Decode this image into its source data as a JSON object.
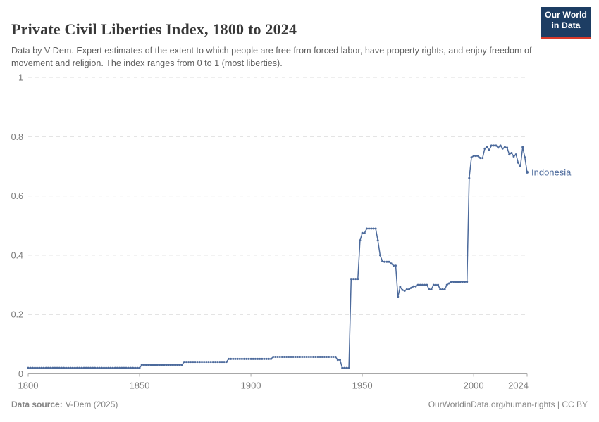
{
  "header": {
    "title": "Private Civil Liberties Index, 1800 to 2024",
    "subtitle": "Data by V-Dem. Expert estimates of the extent to which people are free from forced labor, have property rights, and enjoy freedom of movement and religion. The index ranges from 0 to 1 (most liberties).",
    "logo": {
      "line1": "Our World",
      "line2": "in Data",
      "bg_color": "#1d3d63",
      "accent_color": "#d93b2b"
    }
  },
  "footer": {
    "source_label": "Data source:",
    "source_value": "V-Dem (2025)",
    "credit": "OurWorldinData.org/human-rights | CC BY"
  },
  "chart_data": {
    "type": "line",
    "title": "Private Civil Liberties Index, 1800 to 2024",
    "xlabel": "",
    "ylabel": "",
    "xlim": [
      1800,
      2024
    ],
    "ylim": [
      0,
      1
    ],
    "grid": "dashed-horizontal",
    "x_ticks": {
      "values": [
        1800,
        1850,
        1900,
        1950,
        2000,
        2024
      ],
      "labels": [
        "1800",
        "1850",
        "1900",
        "1950",
        "2000",
        "2024"
      ]
    },
    "y_ticks": {
      "values": [
        0,
        0.2,
        0.4,
        0.6,
        0.8,
        1
      ],
      "labels": [
        "0",
        "0.2",
        "0.4",
        "0.6",
        "0.8",
        "1"
      ]
    },
    "line_color": "#4c6a9c",
    "series": [
      {
        "name": "Indonesia",
        "start_year": 1800,
        "values": [
          0.02,
          0.02,
          0.02,
          0.02,
          0.02,
          0.02,
          0.02,
          0.02,
          0.02,
          0.02,
          0.02,
          0.02,
          0.02,
          0.02,
          0.02,
          0.02,
          0.02,
          0.02,
          0.02,
          0.02,
          0.02,
          0.02,
          0.02,
          0.02,
          0.02,
          0.02,
          0.02,
          0.02,
          0.02,
          0.02,
          0.02,
          0.02,
          0.02,
          0.02,
          0.02,
          0.02,
          0.02,
          0.02,
          0.02,
          0.02,
          0.02,
          0.02,
          0.02,
          0.02,
          0.02,
          0.02,
          0.02,
          0.02,
          0.02,
          0.02,
          0.02,
          0.03,
          0.03,
          0.03,
          0.03,
          0.03,
          0.03,
          0.03,
          0.03,
          0.03,
          0.03,
          0.03,
          0.03,
          0.03,
          0.03,
          0.03,
          0.03,
          0.03,
          0.03,
          0.03,
          0.04,
          0.04,
          0.04,
          0.04,
          0.04,
          0.04,
          0.04,
          0.04,
          0.04,
          0.04,
          0.04,
          0.04,
          0.04,
          0.04,
          0.04,
          0.04,
          0.04,
          0.04,
          0.04,
          0.04,
          0.05,
          0.05,
          0.05,
          0.05,
          0.05,
          0.05,
          0.05,
          0.05,
          0.05,
          0.05,
          0.05,
          0.05,
          0.05,
          0.05,
          0.05,
          0.05,
          0.05,
          0.05,
          0.05,
          0.05,
          0.057,
          0.057,
          0.057,
          0.057,
          0.057,
          0.057,
          0.057,
          0.057,
          0.057,
          0.057,
          0.057,
          0.057,
          0.057,
          0.057,
          0.057,
          0.057,
          0.057,
          0.057,
          0.057,
          0.057,
          0.057,
          0.057,
          0.057,
          0.057,
          0.057,
          0.057,
          0.057,
          0.057,
          0.057,
          0.047,
          0.047,
          0.02,
          0.02,
          0.02,
          0.02,
          0.32,
          0.32,
          0.32,
          0.32,
          0.45,
          0.475,
          0.475,
          0.49,
          0.49,
          0.49,
          0.49,
          0.49,
          0.45,
          0.4,
          0.38,
          0.378,
          0.378,
          0.378,
          0.372,
          0.365,
          0.365,
          0.26,
          0.293,
          0.283,
          0.28,
          0.285,
          0.285,
          0.29,
          0.295,
          0.295,
          0.3,
          0.3,
          0.3,
          0.3,
          0.3,
          0.285,
          0.285,
          0.3,
          0.3,
          0.3,
          0.285,
          0.285,
          0.285,
          0.3,
          0.305,
          0.31,
          0.31,
          0.31,
          0.31,
          0.31,
          0.31,
          0.31,
          0.31,
          0.66,
          0.73,
          0.735,
          0.735,
          0.735,
          0.728,
          0.728,
          0.76,
          0.765,
          0.755,
          0.77,
          0.77,
          0.77,
          0.763,
          0.77,
          0.76,
          0.765,
          0.763,
          0.74,
          0.745,
          0.733,
          0.74,
          0.712,
          0.7,
          0.765,
          0.73,
          0.68
        ]
      }
    ],
    "end_label": "Indonesia"
  }
}
